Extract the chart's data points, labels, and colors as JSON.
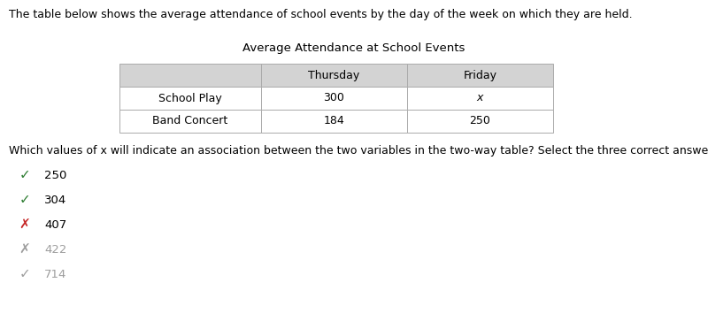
{
  "intro_text": "The table below shows the average attendance of school events by the day of the week on which they are held.",
  "table_title": "Average Attendance at School Events",
  "table_headers": [
    "",
    "Thursday",
    "Friday"
  ],
  "table_rows": [
    [
      "School Play",
      "300",
      "x"
    ],
    [
      "Band Concert",
      "184",
      "250"
    ]
  ],
  "header_bg": "#d3d3d3",
  "row_bg": "#ffffff",
  "question_text": "Which values of x will indicate an association between the two variables in the two-way table? Select the three correct answers.",
  "answers": [
    {
      "value": "250",
      "symbol": "✓",
      "symbol_color": "#2e7d32",
      "text_color": "#000000"
    },
    {
      "value": "304",
      "symbol": "✓",
      "symbol_color": "#2e7d32",
      "text_color": "#000000"
    },
    {
      "value": "407",
      "symbol": "✗",
      "symbol_color": "#c62828",
      "text_color": "#000000"
    },
    {
      "value": "422",
      "symbol": "✗",
      "symbol_color": "#9e9e9e",
      "text_color": "#9e9e9e"
    },
    {
      "value": "714",
      "symbol": "✓",
      "symbol_color": "#9e9e9e",
      "text_color": "#9e9e9e"
    }
  ],
  "bg_color": "#ffffff",
  "font_size_intro": 9.0,
  "font_size_title": 9.5,
  "font_size_table": 9.0,
  "font_size_question": 9.0,
  "font_size_answers": 9.5,
  "font_size_symbol": 11.0
}
